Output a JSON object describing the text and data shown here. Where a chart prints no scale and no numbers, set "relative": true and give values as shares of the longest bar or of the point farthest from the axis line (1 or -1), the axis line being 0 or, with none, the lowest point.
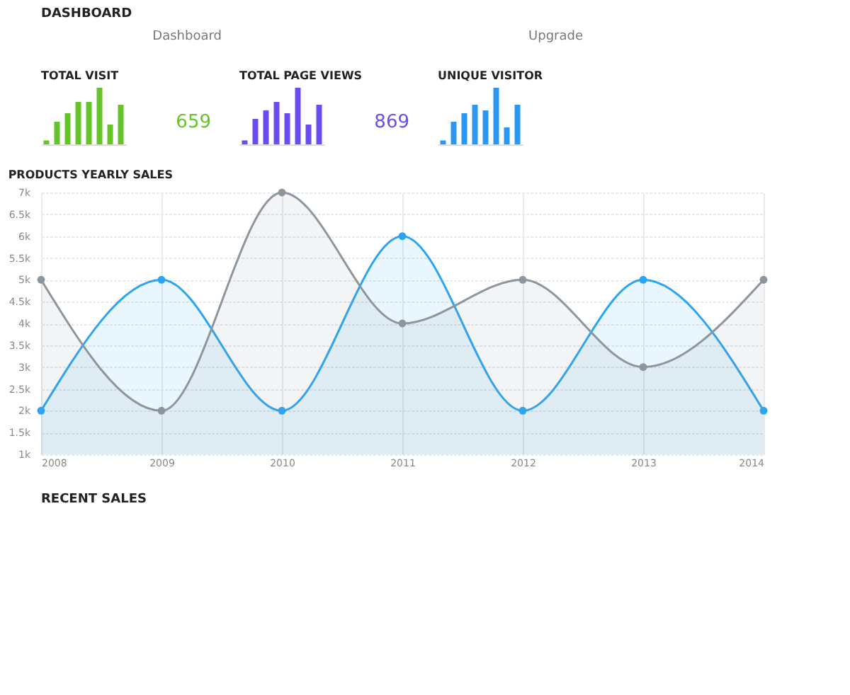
{
  "chart_data": [
    {
      "type": "other",
      "title": "DASHBOARD",
      "annotations": [
        "Dashboard",
        "Upgrade"
      ]
    },
    {
      "type": "bar",
      "title": "TOTAL VISIT",
      "relative": true,
      "categories": [
        null,
        null,
        null,
        null,
        null,
        null,
        null,
        null
      ],
      "values": [
        0.07,
        0.4,
        0.55,
        0.75,
        0.75,
        1,
        0.35,
        0.7
      ],
      "color": "#66c42a",
      "annotations": [
        "659"
      ]
    },
    {
      "type": "bar",
      "title": "TOTAL PAGE VIEWS",
      "relative": true,
      "categories": [
        null,
        null,
        null,
        null,
        null,
        null,
        null,
        null
      ],
      "values": [
        0.07,
        0.45,
        0.6,
        0.75,
        0.55,
        1,
        0.35,
        0.7
      ],
      "color": "#6a4cf0",
      "annotations": [
        "869"
      ]
    },
    {
      "type": "bar",
      "title": "UNIQUE VISITOR",
      "relative": true,
      "categories": [
        null,
        null,
        null,
        null,
        null,
        null,
        null,
        null
      ],
      "values": [
        0.07,
        0.4,
        0.55,
        0.7,
        0.6,
        1,
        0.3,
        0.7
      ],
      "color": "#2a98f2"
    },
    {
      "type": "area",
      "title": "PRODUCTS YEARLY SALES",
      "categories": [
        "2008",
        "2009",
        "2010",
        "2011",
        "2012",
        "2013",
        "2014"
      ],
      "ylim": [
        1000,
        7000
      ],
      "yticks": [
        {
          "value": 1000,
          "label": "1k"
        },
        {
          "value": 1500,
          "label": "1.5k"
        },
        {
          "value": 2000,
          "label": "2k"
        },
        {
          "value": 2500,
          "label": "2.5k"
        },
        {
          "value": 3000,
          "label": "3k"
        },
        {
          "value": 3500,
          "label": "3.5k"
        },
        {
          "value": 4000,
          "label": "4k"
        },
        {
          "value": 4500,
          "label": "4.5k"
        },
        {
          "value": 5000,
          "label": "5k"
        },
        {
          "value": 5500,
          "label": "5.5k"
        },
        {
          "value": 6000,
          "label": "6k"
        },
        {
          "value": 6500,
          "label": "6.5k"
        },
        {
          "value": 7000,
          "label": "7k"
        }
      ],
      "grid": true,
      "marker": "circle",
      "line_style": "solid",
      "series": [
        {
          "color": "#2ba5f2",
          "values": [
            2000,
            5000,
            2000,
            6000,
            2000,
            5000,
            2000
          ]
        },
        {
          "color": "#8c969c",
          "values": [
            5000,
            2000,
            7000,
            4000,
            5000,
            3000,
            5000
          ]
        }
      ]
    },
    {
      "type": "other",
      "title": "RECENT SALES"
    }
  ]
}
